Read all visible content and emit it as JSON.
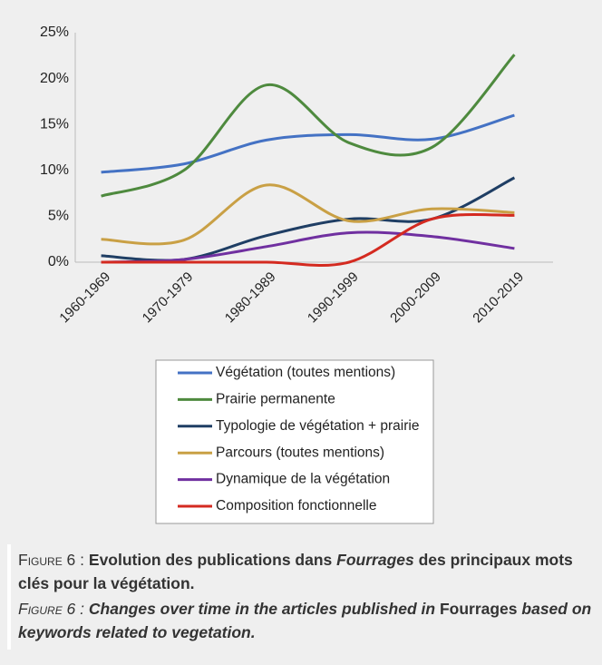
{
  "chart_data": {
    "type": "line",
    "categories": [
      "1960-1969",
      "1970-1979",
      "1980-1989",
      "1990-1999",
      "2000-2009",
      "2010-2019"
    ],
    "series": [
      {
        "name": "Végétation (toutes mentions)",
        "color": "#4472c4",
        "values": [
          9.8,
          10.7,
          13.3,
          13.9,
          13.4,
          16.0
        ]
      },
      {
        "name": "Prairie permanente",
        "color": "#4e8a3e",
        "values": [
          7.2,
          10.0,
          19.3,
          13.0,
          12.5,
          22.6
        ]
      },
      {
        "name": "Typologie de végétation + prairie",
        "color": "#1f3e64",
        "values": [
          0.7,
          0.3,
          2.9,
          4.7,
          4.7,
          9.2
        ]
      },
      {
        "name": "Parcours (toutes mentions)",
        "color": "#c9a045",
        "values": [
          2.5,
          2.4,
          8.4,
          4.5,
          5.8,
          5.4
        ]
      },
      {
        "name": "Dynamique de la végétation",
        "color": "#7030a0",
        "values": [
          0,
          0.3,
          1.7,
          3.2,
          2.8,
          1.5
        ]
      },
      {
        "name": "Composition fonctionnelle",
        "color": "#d42a20",
        "values": [
          0,
          0,
          0,
          0,
          4.7,
          5.1
        ]
      }
    ],
    "ylim": [
      0,
      25
    ],
    "yticks": [
      {
        "value": 0,
        "label": "0%"
      },
      {
        "value": 5,
        "label": "5%"
      },
      {
        "value": 10,
        "label": "10%"
      },
      {
        "value": 15,
        "label": "15%"
      },
      {
        "value": 20,
        "label": "20%"
      },
      {
        "value": 25,
        "label": "25%"
      }
    ],
    "smooth": true
  },
  "caption_fr": {
    "label": "Figure 6 :",
    "text_1": "Evolution des publications dans",
    "text_2": "Fourrages",
    "text_3": "des principaux mots clés pour la végétation."
  },
  "caption_en": {
    "label": "Figure 6 :",
    "text_1": "Changes over time in the articles published in",
    "text_2": "Fourrages",
    "text_3": "based on keywords related to vegetation."
  }
}
